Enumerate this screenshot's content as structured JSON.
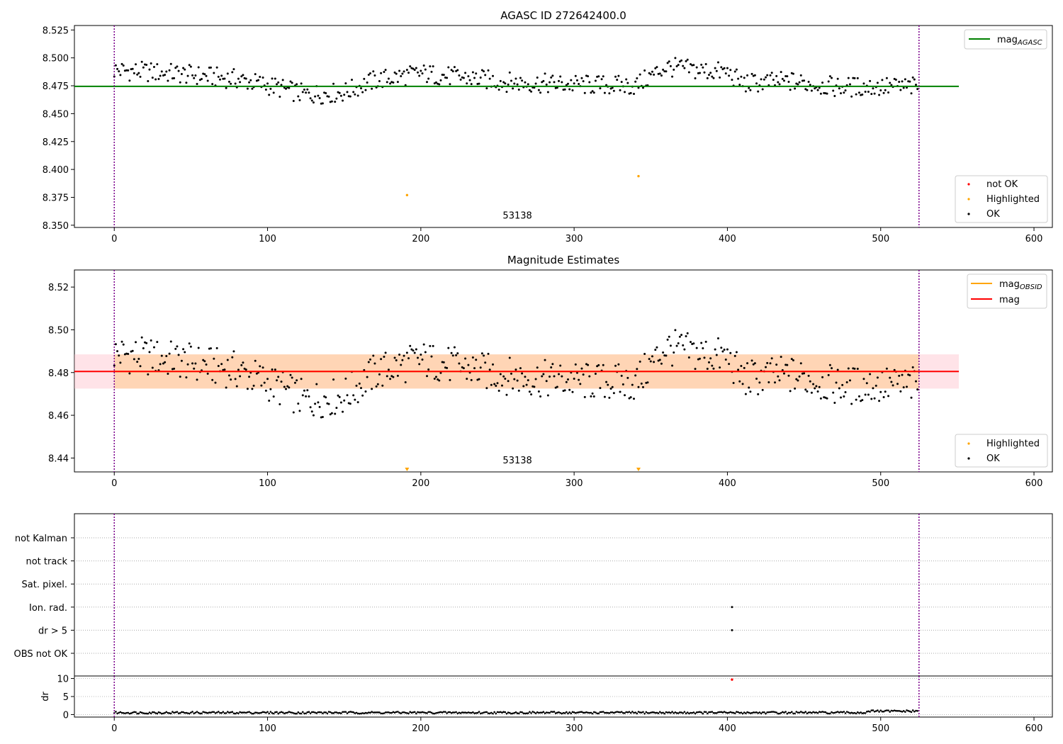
{
  "chart_data": [
    {
      "type": "scatter",
      "title": "AGASC ID 272642400.0",
      "xlim": [
        -26,
        612
      ],
      "ylim": [
        8.348,
        8.529
      ],
      "yticks": [
        8.35,
        8.375,
        8.4,
        8.425,
        8.45,
        8.475,
        8.5,
        8.525
      ],
      "ytick_labels": [
        "8.350",
        "8.375",
        "8.400",
        "8.425",
        "8.450",
        "8.475",
        "8.500",
        "8.525"
      ],
      "xticks": [
        0,
        100,
        200,
        300,
        400,
        500,
        600
      ],
      "xtick_labels": [
        "0",
        "100",
        "200",
        "300",
        "400",
        "500",
        "600"
      ],
      "obs_boundaries": [
        0,
        525
      ],
      "obs_label": {
        "x": 263,
        "y": 8.356,
        "text": "53138"
      },
      "mag_agasc_line": {
        "y": 8.4745,
        "x_range": [
          -26,
          551
        ]
      },
      "highlighted_points": [
        {
          "x": 191,
          "y": 8.377
        },
        {
          "x": 342,
          "y": 8.394
        }
      ],
      "legend_top": [
        {
          "label": "mag",
          "subscript": "AGASC",
          "color": "#008000"
        }
      ],
      "legend_bottom": [
        {
          "label": "not OK",
          "color": "#ff0000"
        },
        {
          "label": "Highlighted",
          "color": "#ffa500"
        },
        {
          "label": "OK",
          "color": "#000000"
        }
      ]
    },
    {
      "type": "scatter",
      "title": "Magnitude Estimates",
      "xlim": [
        -26,
        612
      ],
      "ylim": [
        8.4335,
        8.528
      ],
      "yticks": [
        8.44,
        8.46,
        8.48,
        8.5,
        8.52
      ],
      "ytick_labels": [
        "8.44",
        "8.46",
        "8.48",
        "8.50",
        "8.52"
      ],
      "xticks": [
        0,
        100,
        200,
        300,
        400,
        500,
        600
      ],
      "xtick_labels": [
        "0",
        "100",
        "200",
        "300",
        "400",
        "500",
        "600"
      ],
      "obs_boundaries": [
        0,
        525
      ],
      "obs_label": {
        "x": 263,
        "y": 8.4375,
        "text": "53138"
      },
      "mag_line": {
        "y": 8.4805,
        "x_range": [
          -26,
          551
        ]
      },
      "mag_band": {
        "low": 8.4725,
        "high": 8.4885,
        "x_range": [
          -26,
          551
        ]
      },
      "mag_obsid_line": {
        "y": 8.4805,
        "x_range": [
          0,
          525
        ]
      },
      "highlighted_markers": [
        {
          "x": 191
        },
        {
          "x": 342
        }
      ],
      "legend_top": [
        {
          "label": "mag",
          "subscript": "OBSID",
          "color": "#ffa500"
        },
        {
          "label": "mag",
          "color": "#ff0000"
        }
      ],
      "legend_bottom": [
        {
          "label": "Highlighted",
          "color": "#ffa500"
        },
        {
          "label": "OK",
          "color": "#000000"
        }
      ]
    },
    {
      "type": "scatter",
      "title": "",
      "xlim": [
        -26,
        612
      ],
      "flag_rows": [
        "not Kalman",
        "not track",
        "Sat. pixel.",
        "Ion. rad.",
        "dr > 5",
        "OBS not OK"
      ],
      "flag_points": [
        {
          "row": "Ion. rad.",
          "x": 403
        },
        {
          "row": "dr > 5",
          "x": 403
        }
      ],
      "obs_boundaries": [
        0,
        525
      ]
    },
    {
      "type": "scatter",
      "title": "",
      "ylabel": "dr",
      "xlim": [
        -26,
        612
      ],
      "ylim": [
        -0.7,
        10.7
      ],
      "yticks": [
        0,
        5,
        10
      ],
      "ytick_labels": [
        "0",
        "5",
        "10"
      ],
      "xticks": [
        0,
        100,
        200,
        300,
        400,
        500,
        600
      ],
      "xtick_labels": [
        "0",
        "100",
        "200",
        "300",
        "400",
        "500",
        "600"
      ],
      "outlier_point": {
        "x": 403,
        "y": 9.7
      },
      "obs_boundaries": [
        0,
        525
      ]
    }
  ]
}
